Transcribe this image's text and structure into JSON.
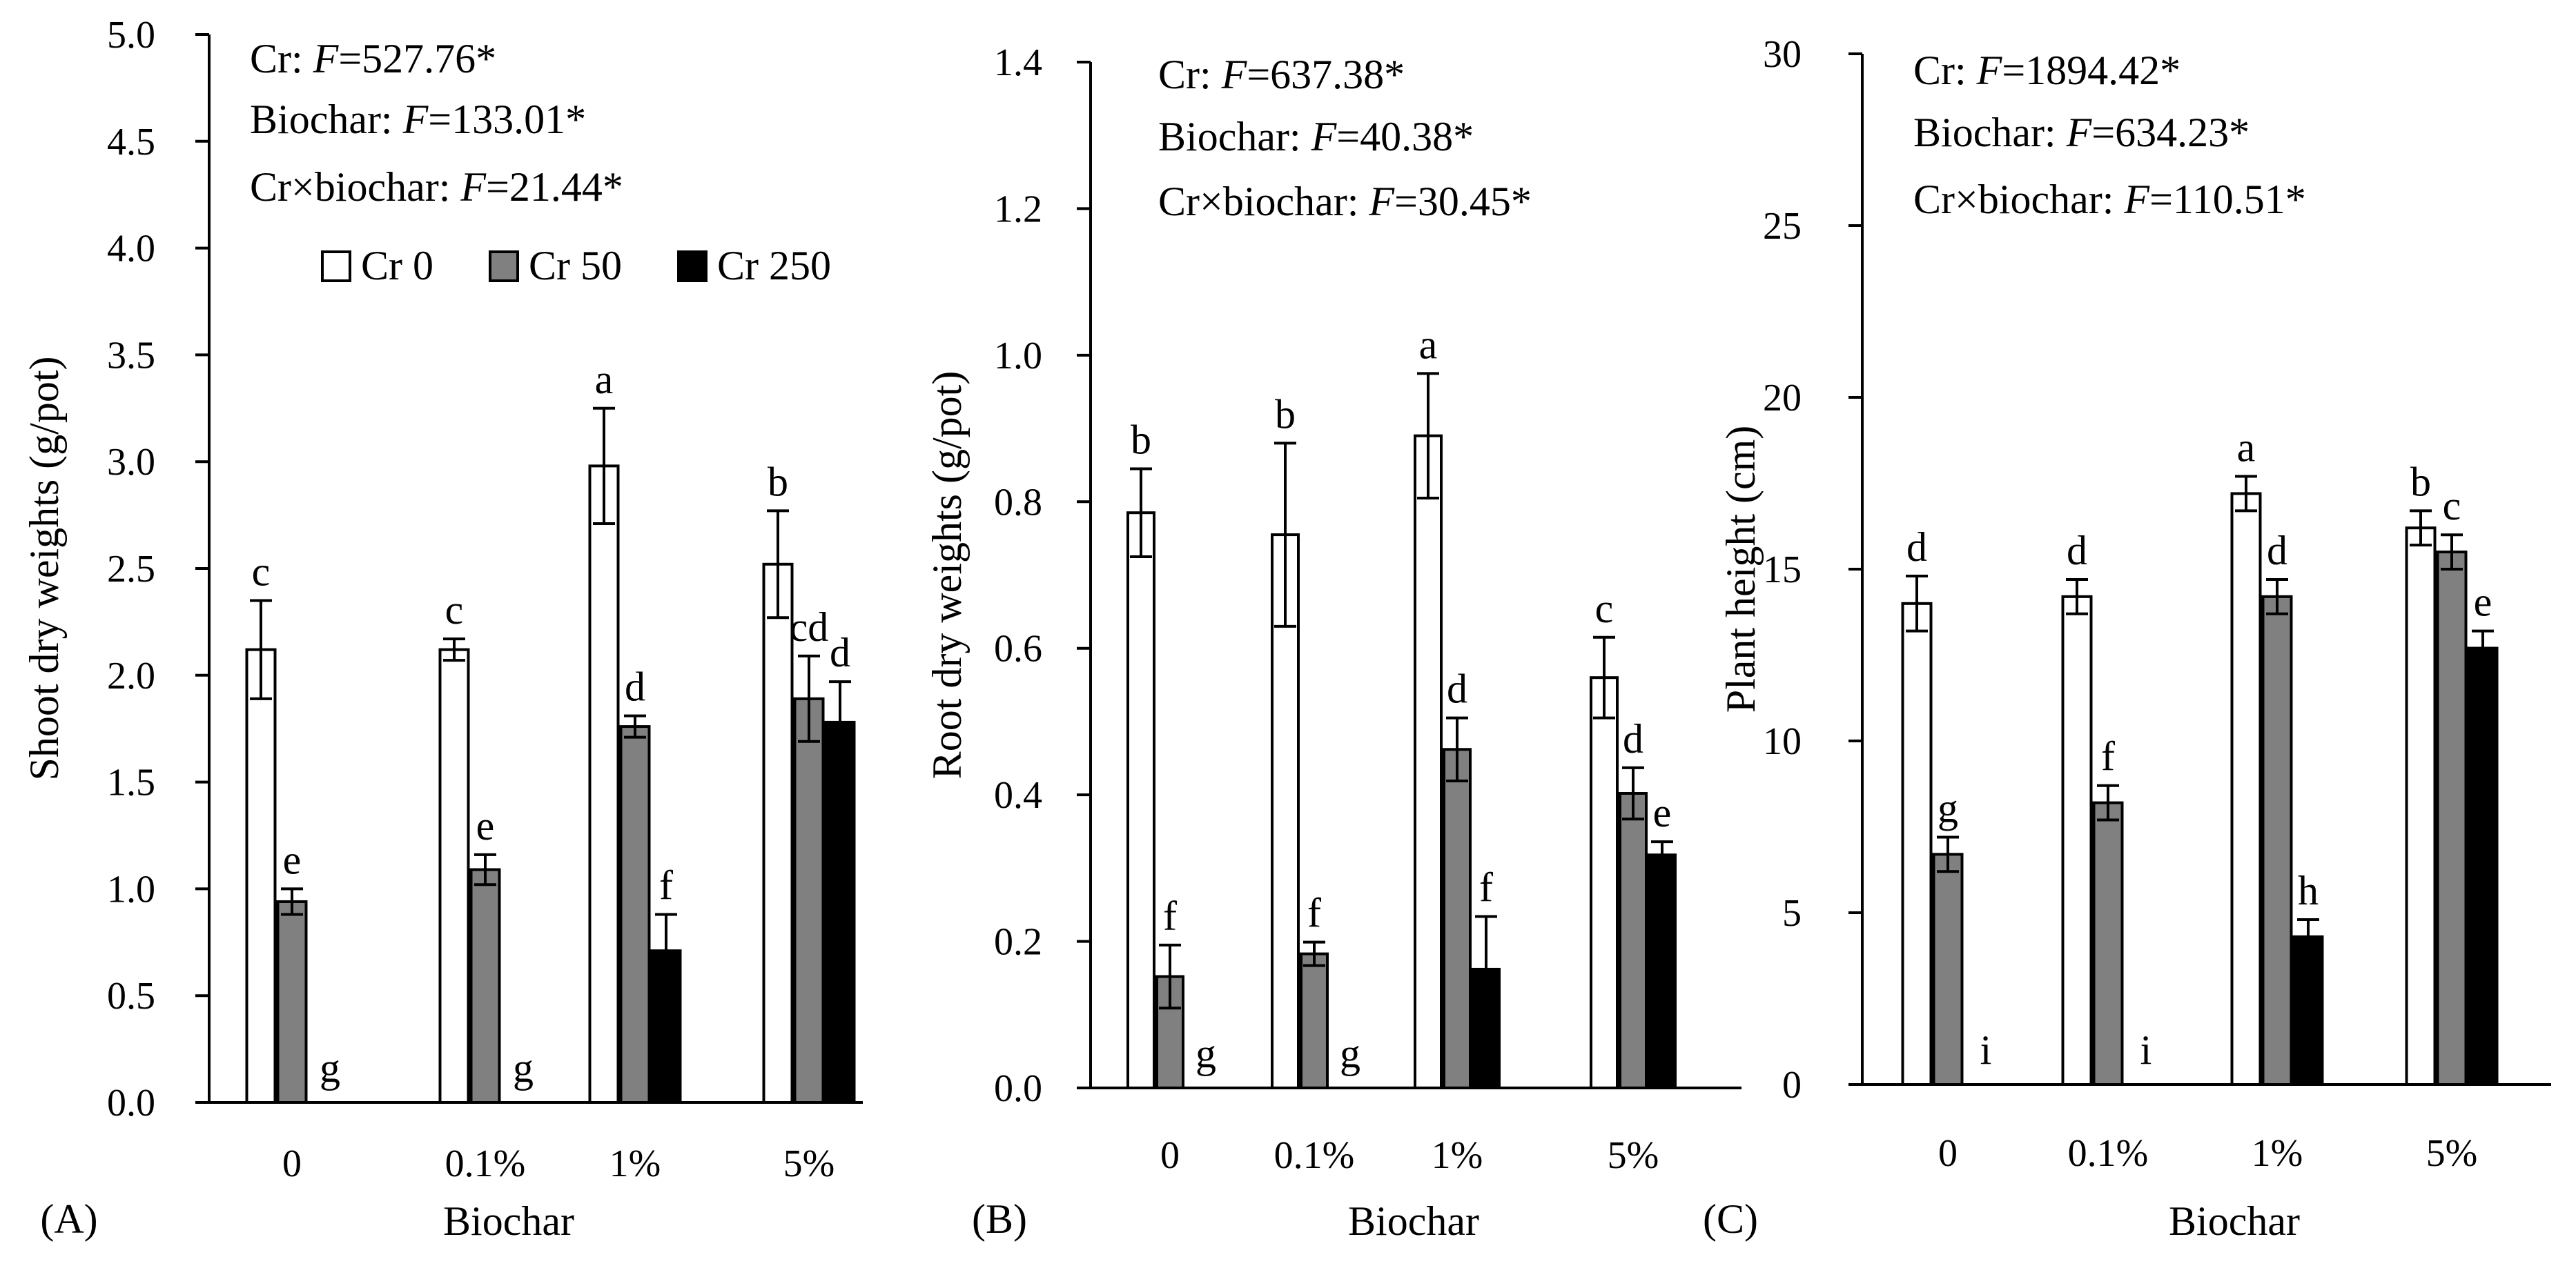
{
  "figure": {
    "legend": [
      {
        "label": "Cr 0",
        "color": "#ffffff"
      },
      {
        "label": "Cr 50",
        "color": "#808080"
      },
      {
        "label": "Cr 250",
        "color": "#000000"
      }
    ]
  },
  "chart_data": [
    {
      "type": "bar",
      "panel_label": "(A)",
      "ylabel": "Shoot dry weights (g/pot)",
      "xlabel": "Biochar",
      "categories": [
        "0",
        "0.1%",
        "1%",
        "5%"
      ],
      "ylim": [
        0,
        5
      ],
      "yticks": [
        "0.0",
        "0.5",
        "1.0",
        "1.5",
        "2.0",
        "2.5",
        "3.0",
        "3.5",
        "4.0",
        "4.5",
        "5.0"
      ],
      "stats": [
        {
          "label": "Cr: ",
          "f": "F",
          "value": "=527.76*"
        },
        {
          "label": "Biochar: ",
          "f": "F",
          "value": "=133.01*"
        },
        {
          "label": "Cr×biochar: ",
          "f": "F",
          "value": "=21.44*"
        }
      ],
      "series": [
        {
          "name": "Cr 0",
          "values": [
            2.12,
            2.12,
            2.98,
            2.52
          ],
          "errors": [
            0.23,
            0.05,
            0.27,
            0.25
          ],
          "letters": [
            "c",
            "c",
            "a",
            "b"
          ]
        },
        {
          "name": "Cr 50",
          "values": [
            0.94,
            1.09,
            1.76,
            1.89
          ],
          "errors": [
            0.06,
            0.07,
            0.05,
            0.2
          ],
          "letters": [
            "e",
            "e",
            "d",
            "cd"
          ]
        },
        {
          "name": "Cr 250",
          "values": [
            0,
            0,
            0.71,
            1.78
          ],
          "errors": [
            0,
            0,
            0.17,
            0.19
          ],
          "letters": [
            "g",
            "g",
            "f",
            "d"
          ]
        }
      ]
    },
    {
      "type": "bar",
      "panel_label": "(B)",
      "ylabel": "Root dry weights (g/pot)",
      "xlabel": "Biochar",
      "categories": [
        "0",
        "0.1%",
        "1%",
        "5%"
      ],
      "ylim": [
        0,
        1.4
      ],
      "yticks": [
        "0.0",
        "0.2",
        "0.4",
        "0.6",
        "0.8",
        "1.0",
        "1.2",
        "1.4"
      ],
      "stats": [
        {
          "label": "Cr: ",
          "f": "F",
          "value": "=637.38*"
        },
        {
          "label": "Biochar: ",
          "f": "F",
          "value": "=40.38*"
        },
        {
          "label": "Cr×biochar: ",
          "f": "F",
          "value": "=30.45*"
        }
      ],
      "series": [
        {
          "name": "Cr 0",
          "values": [
            0.785,
            0.755,
            0.89,
            0.56
          ],
          "errors": [
            0.06,
            0.125,
            0.085,
            0.055
          ],
          "letters": [
            "b",
            "b",
            "a",
            "c"
          ]
        },
        {
          "name": "Cr 50",
          "values": [
            0.152,
            0.183,
            0.462,
            0.402
          ],
          "errors": [
            0.043,
            0.016,
            0.043,
            0.035
          ],
          "letters": [
            "f",
            "f",
            "d",
            "d"
          ]
        },
        {
          "name": "Cr 250",
          "values": [
            0,
            0,
            0.162,
            0.318
          ],
          "errors": [
            0,
            0,
            0.072,
            0.018
          ],
          "letters": [
            "g",
            "g",
            "f",
            "e"
          ]
        }
      ]
    },
    {
      "type": "bar",
      "panel_label": "(C)",
      "ylabel": "Plant height (cm)",
      "xlabel": "Biochar",
      "categories": [
        "0",
        "0.1%",
        "1%",
        "5%"
      ],
      "ylim": [
        0,
        30
      ],
      "yticks": [
        "0",
        "5",
        "10",
        "15",
        "20",
        "25",
        "30"
      ],
      "stats": [
        {
          "label": "Cr: ",
          "f": "F",
          "value": "=1894.42*"
        },
        {
          "label": "Biochar: ",
          "f": "F",
          "value": "=634.23*"
        },
        {
          "label": "Cr×biochar: ",
          "f": "F",
          "value": "=110.51*"
        }
      ],
      "series": [
        {
          "name": "Cr 0",
          "values": [
            14.0,
            14.2,
            17.2,
            16.2
          ],
          "errors": [
            0.8,
            0.5,
            0.5,
            0.5
          ],
          "letters": [
            "d",
            "d",
            "a",
            "b"
          ]
        },
        {
          "name": "Cr 50",
          "values": [
            6.7,
            8.2,
            14.2,
            15.5
          ],
          "errors": [
            0.5,
            0.5,
            0.5,
            0.5
          ],
          "letters": [
            "g",
            "f",
            "d",
            "c"
          ]
        },
        {
          "name": "Cr 250",
          "values": [
            0,
            0,
            4.3,
            12.7
          ],
          "errors": [
            0,
            0,
            0.5,
            0.5
          ],
          "letters": [
            "i",
            "i",
            "h",
            "e"
          ]
        }
      ]
    }
  ]
}
